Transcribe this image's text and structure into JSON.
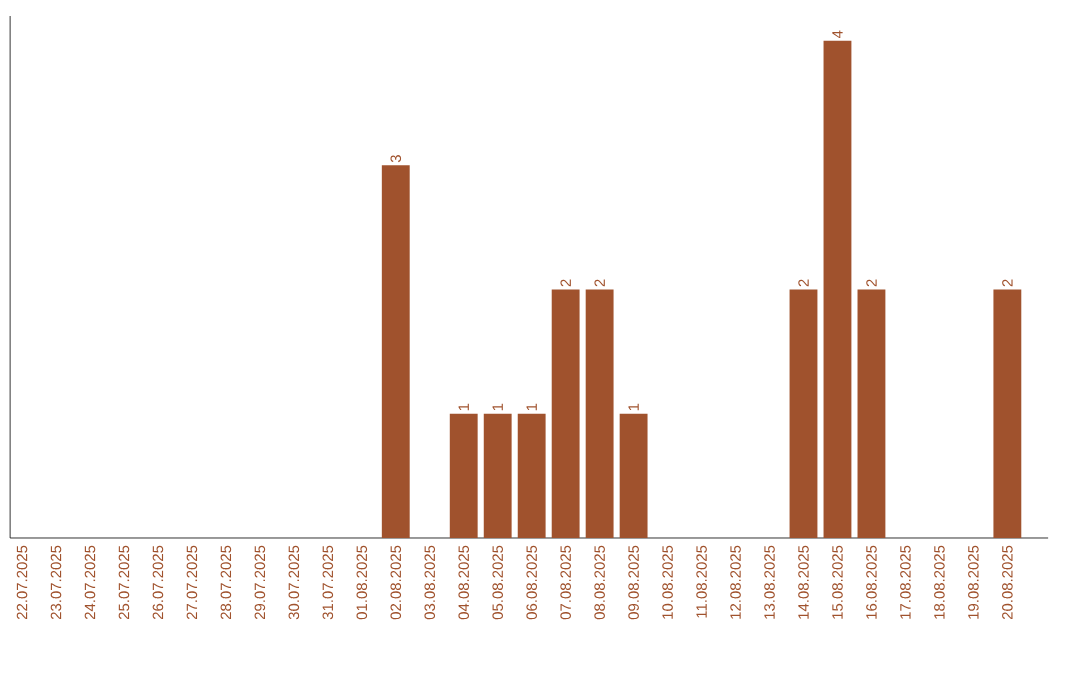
{
  "chart_data": {
    "type": "bar",
    "color": "#a0522d",
    "categories": [
      "22.07.2025",
      "23.07.2025",
      "24.07.2025",
      "25.07.2025",
      "26.07.2025",
      "27.07.2025",
      "28.07.2025",
      "29.07.2025",
      "30.07.2025",
      "31.07.2025",
      "01.08.2025",
      "02.08.2025",
      "03.08.2025",
      "04.08.2025",
      "05.08.2025",
      "06.08.2025",
      "07.08.2025",
      "08.08.2025",
      "09.08.2025",
      "10.08.2025",
      "11.08.2025",
      "12.08.2025",
      "13.08.2025",
      "14.08.2025",
      "15.08.2025",
      "16.08.2025",
      "17.08.2025",
      "18.08.2025",
      "19.08.2025",
      "20.08.2025"
    ],
    "values": [
      0,
      0,
      0,
      0,
      0,
      0,
      0,
      0,
      0,
      0,
      0,
      3,
      0,
      1,
      1,
      1,
      2,
      2,
      1,
      0,
      0,
      0,
      0,
      2,
      4,
      2,
      0,
      0,
      0,
      2
    ],
    "value_labels": [
      null,
      null,
      null,
      null,
      null,
      null,
      null,
      null,
      null,
      null,
      null,
      "3",
      null,
      "1",
      "1",
      "1",
      "2",
      "2",
      "1",
      null,
      null,
      null,
      null,
      "2",
      "4",
      "2",
      null,
      null,
      null,
      "2"
    ],
    "grid": false
  }
}
